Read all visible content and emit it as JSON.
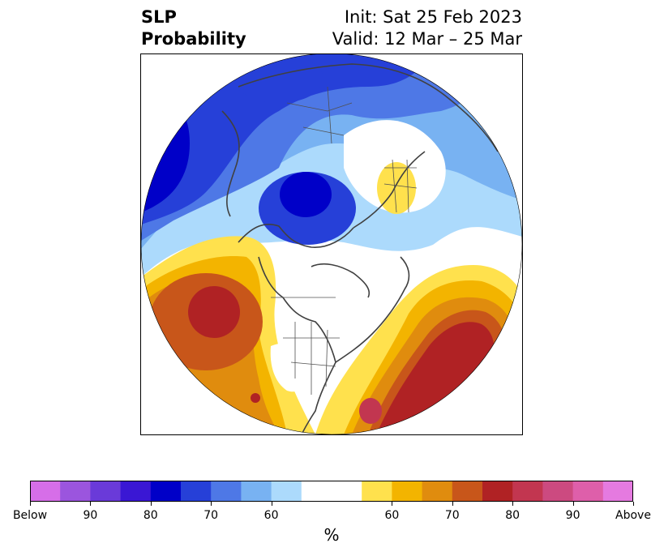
{
  "header": {
    "title_line1": "SLP",
    "title_line2": "Probability",
    "init": "Init: Sat 25 Feb 2023",
    "valid": "Valid: 12 Mar – 25 Mar"
  },
  "colorbar": {
    "unit": "%",
    "colors": [
      "#d66ee8",
      "#9b55de",
      "#6a3ad9",
      "#3a17d4",
      "#0000c8",
      "#2640d8",
      "#4e78e6",
      "#78b2f2",
      "#acdafc",
      "#ffffff",
      "#ffe14d",
      "#f3b400",
      "#e08c0e",
      "#c8561a",
      "#b02224",
      "#c23650",
      "#cc4a80",
      "#de5faa",
      "#e57ae0"
    ],
    "ticks": [
      "Below",
      "90",
      "80",
      "70",
      "60",
      "60",
      "70",
      "80",
      "90",
      "Above"
    ]
  },
  "map": {
    "projection": "north-polar-stereographic",
    "field": "sea-level-pressure tercile probability"
  }
}
